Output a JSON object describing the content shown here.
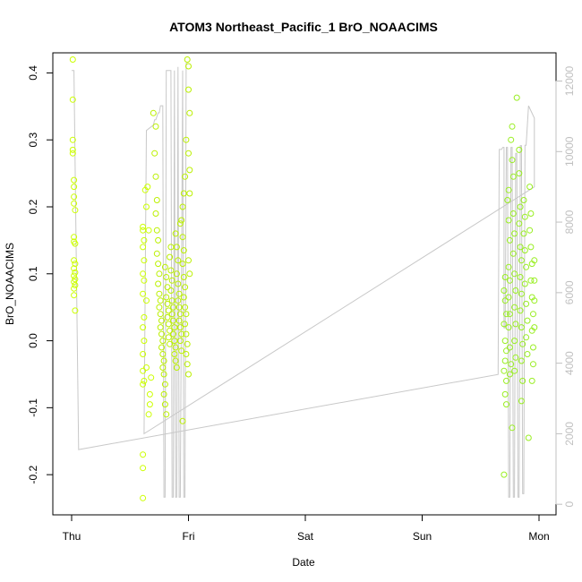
{
  "chart_data": {
    "type": "scatter",
    "title": "ATOM3 Northeast_Pacific_1 BrO_NOAACIMS",
    "xlabel": "Date",
    "ylabel": "BrO_NOAACIMS",
    "x_ticks": [
      "Thu",
      "Fri",
      "Sat",
      "Sun",
      "Mon"
    ],
    "x_range_days": [
      0,
      4
    ],
    "ylim": [
      -0.26,
      0.43
    ],
    "y_ticks": [
      -0.2,
      -0.1,
      0.0,
      0.1,
      0.2,
      0.3,
      0.4
    ],
    "y_tick_labels": [
      "-0.2",
      "-0.1",
      "0.0",
      "0.1",
      "0.2",
      "0.3",
      "0.4"
    ],
    "y2_range": [
      -300,
      12800
    ],
    "y2_ticks": [
      0,
      2000,
      4000,
      6000,
      8000,
      10000,
      12000
    ],
    "y2_tick_labels": [
      "0",
      "2000",
      "4000",
      "6000",
      "8000",
      "10000",
      "12000"
    ],
    "series": [
      {
        "point_color": "#ccff00",
        "points": [
          [
            0.01,
            0.42
          ],
          [
            0.01,
            0.36
          ],
          [
            0.01,
            0.3
          ],
          [
            0.01,
            0.285
          ],
          [
            0.01,
            0.28
          ],
          [
            0.02,
            0.24
          ],
          [
            0.02,
            0.23
          ],
          [
            0.02,
            0.215
          ],
          [
            0.02,
            0.205
          ],
          [
            0.03,
            0.195
          ],
          [
            0.02,
            0.155
          ],
          [
            0.02,
            0.148
          ],
          [
            0.03,
            0.145
          ],
          [
            0.02,
            0.12
          ],
          [
            0.03,
            0.115
          ],
          [
            0.02,
            0.108
          ],
          [
            0.03,
            0.102
          ],
          [
            0.02,
            0.097
          ],
          [
            0.03,
            0.092
          ],
          [
            0.02,
            0.088
          ],
          [
            0.03,
            0.083
          ],
          [
            0.02,
            0.078
          ],
          [
            0.02,
            0.068
          ],
          [
            0.03,
            0.045
          ],
          [
            0.61,
            0.17
          ],
          [
            0.61,
            0.165
          ],
          [
            0.62,
            0.15
          ],
          [
            0.61,
            0.14
          ],
          [
            0.62,
            0.12
          ],
          [
            0.61,
            0.1
          ],
          [
            0.62,
            0.09
          ],
          [
            0.61,
            0.07
          ],
          [
            0.62,
            0.035
          ],
          [
            0.61,
            0.02
          ],
          [
            0.62,
            0.0
          ],
          [
            0.61,
            -0.02
          ],
          [
            0.61,
            -0.045
          ],
          [
            0.62,
            -0.06
          ],
          [
            0.61,
            -0.065
          ],
          [
            0.61,
            -0.17
          ],
          [
            0.61,
            -0.19
          ],
          [
            0.61,
            -0.235
          ],
          [
            0.63,
            0.225
          ],
          [
            0.64,
            0.2
          ],
          [
            0.64,
            0.06
          ],
          [
            0.64,
            -0.04
          ],
          [
            0.65,
            0.23
          ],
          [
            0.66,
            0.165
          ],
          [
            0.66,
            -0.11
          ],
          [
            0.67,
            -0.08
          ],
          [
            0.67,
            -0.095
          ],
          [
            0.68,
            -0.055
          ]
        ]
      },
      {
        "point_color": "#99ee22",
        "points": [
          [
            3.71,
            0.095
          ],
          [
            3.7,
            0.075
          ],
          [
            3.71,
            0.06
          ],
          [
            3.72,
            0.04
          ],
          [
            3.7,
            0.025
          ],
          [
            3.71,
            0.0
          ],
          [
            3.72,
            -0.015
          ],
          [
            3.71,
            -0.03
          ],
          [
            3.7,
            -0.045
          ],
          [
            3.72,
            -0.06
          ],
          [
            3.71,
            -0.08
          ],
          [
            3.72,
            -0.095
          ],
          [
            3.7,
            -0.2
          ],
          [
            3.73,
            0.21
          ],
          [
            3.74,
            0.225
          ],
          [
            3.74,
            0.18
          ],
          [
            3.75,
            0.15
          ],
          [
            3.74,
            0.11
          ],
          [
            3.75,
            0.09
          ],
          [
            3.74,
            0.065
          ],
          [
            3.75,
            0.04
          ],
          [
            3.74,
            0.02
          ],
          [
            3.75,
            -0.01
          ],
          [
            3.76,
            -0.035
          ],
          [
            3.75,
            -0.05
          ],
          [
            3.76,
            0.3
          ],
          [
            3.77,
            0.32
          ],
          [
            3.77,
            0.27
          ],
          [
            3.78,
            0.245
          ],
          [
            3.78,
            0.19
          ],
          [
            3.79,
            0.16
          ],
          [
            3.78,
            0.13
          ],
          [
            3.79,
            0.1
          ],
          [
            3.8,
            0.075
          ],
          [
            3.79,
            0.05
          ],
          [
            3.8,
            0.025
          ],
          [
            3.79,
            0.0
          ],
          [
            3.8,
            -0.025
          ],
          [
            3.79,
            -0.045
          ],
          [
            3.77,
            -0.13
          ],
          [
            3.81,
            0.363
          ],
          [
            3.83,
            0.285
          ],
          [
            3.83,
            0.25
          ],
          [
            3.84,
            0.2
          ],
          [
            3.83,
            0.175
          ],
          [
            3.84,
            0.14
          ],
          [
            3.85,
            0.12
          ],
          [
            3.84,
            0.095
          ],
          [
            3.85,
            0.07
          ],
          [
            3.84,
            0.045
          ],
          [
            3.85,
            0.02
          ],
          [
            3.86,
            -0.005
          ],
          [
            3.85,
            -0.03
          ],
          [
            3.86,
            -0.06
          ],
          [
            3.85,
            -0.09
          ],
          [
            3.87,
            0.21
          ],
          [
            3.88,
            0.185
          ],
          [
            3.87,
            0.16
          ],
          [
            3.88,
            0.135
          ],
          [
            3.89,
            0.11
          ],
          [
            3.88,
            0.085
          ],
          [
            3.89,
            0.055
          ],
          [
            3.9,
            0.03
          ],
          [
            3.89,
            0.005
          ],
          [
            3.9,
            -0.02
          ],
          [
            3.91,
            -0.145
          ],
          [
            3.92,
            0.23
          ],
          [
            3.93,
            0.19
          ],
          [
            3.92,
            0.165
          ],
          [
            3.93,
            0.14
          ],
          [
            3.94,
            0.115
          ],
          [
            3.93,
            0.09
          ],
          [
            3.94,
            0.065
          ],
          [
            3.95,
            0.04
          ],
          [
            3.94,
            0.015
          ],
          [
            3.95,
            -0.01
          ],
          [
            3.95,
            -0.035
          ],
          [
            3.94,
            -0.06
          ],
          [
            3.96,
            0.12
          ],
          [
            3.96,
            0.09
          ],
          [
            3.96,
            0.06
          ],
          [
            3.96,
            0.02
          ]
        ]
      },
      {
        "point_color": "#bbf000",
        "points": [
          [
            0.7,
            0.34
          ],
          [
            0.72,
            0.32
          ],
          [
            0.71,
            0.28
          ],
          [
            0.72,
            0.245
          ],
          [
            0.73,
            0.21
          ],
          [
            0.72,
            0.19
          ],
          [
            0.73,
            0.165
          ],
          [
            0.74,
            0.15
          ],
          [
            0.73,
            0.13
          ],
          [
            0.74,
            0.115
          ],
          [
            0.75,
            0.1
          ],
          [
            0.74,
            0.085
          ],
          [
            0.75,
            0.07
          ],
          [
            0.76,
            0.06
          ],
          [
            0.75,
            0.05
          ],
          [
            0.76,
            0.04
          ],
          [
            0.77,
            0.03
          ],
          [
            0.76,
            0.02
          ],
          [
            0.77,
            0.01
          ],
          [
            0.78,
            0.0
          ],
          [
            0.77,
            -0.01
          ],
          [
            0.78,
            -0.02
          ],
          [
            0.79,
            -0.03
          ],
          [
            0.78,
            -0.04
          ],
          [
            0.79,
            -0.05
          ],
          [
            0.8,
            -0.065
          ],
          [
            0.79,
            -0.08
          ],
          [
            0.8,
            -0.095
          ],
          [
            0.81,
            -0.11
          ],
          [
            0.8,
            0.11
          ],
          [
            0.81,
            0.095
          ],
          [
            0.82,
            0.08
          ],
          [
            0.81,
            0.065
          ],
          [
            0.82,
            0.055
          ],
          [
            0.83,
            0.045
          ],
          [
            0.82,
            0.035
          ],
          [
            0.83,
            0.025
          ],
          [
            0.84,
            0.015
          ],
          [
            0.83,
            0.005
          ],
          [
            0.84,
            -0.005
          ],
          [
            0.85,
            0.14
          ],
          [
            0.84,
            0.125
          ],
          [
            0.85,
            0.105
          ],
          [
            0.86,
            0.09
          ],
          [
            0.85,
            0.075
          ],
          [
            0.86,
            0.06
          ],
          [
            0.87,
            0.05
          ],
          [
            0.86,
            0.04
          ],
          [
            0.87,
            0.03
          ],
          [
            0.88,
            0.02
          ],
          [
            0.87,
            0.01
          ],
          [
            0.88,
            0.0
          ],
          [
            0.89,
            -0.01
          ],
          [
            0.88,
            -0.02
          ],
          [
            0.89,
            -0.03
          ],
          [
            0.9,
            -0.04
          ],
          [
            0.89,
            0.16
          ],
          [
            0.9,
            0.14
          ],
          [
            0.91,
            0.12
          ],
          [
            0.9,
            0.1
          ],
          [
            0.91,
            0.085
          ],
          [
            0.92,
            0.07
          ],
          [
            0.91,
            0.06
          ],
          [
            0.92,
            0.05
          ],
          [
            0.93,
            0.04
          ],
          [
            0.92,
            0.03
          ],
          [
            0.93,
            0.02
          ],
          [
            0.94,
            0.01
          ],
          [
            0.93,
            0.0
          ],
          [
            0.94,
            -0.015
          ],
          [
            0.95,
            0.2
          ],
          [
            0.94,
            0.18
          ],
          [
            0.95,
            0.155
          ],
          [
            0.96,
            0.135
          ],
          [
            0.95,
            0.115
          ],
          [
            0.96,
            0.095
          ],
          [
            0.97,
            0.08
          ],
          [
            0.96,
            0.065
          ],
          [
            0.97,
            0.05
          ],
          [
            0.98,
            0.04
          ],
          [
            0.97,
            0.025
          ],
          [
            0.98,
            0.01
          ],
          [
            0.99,
            -0.005
          ],
          [
            0.98,
            -0.02
          ],
          [
            0.99,
            -0.035
          ],
          [
            1.0,
            -0.05
          ],
          [
            0.99,
            0.42
          ],
          [
            1.0,
            0.41
          ],
          [
            1.0,
            0.375
          ],
          [
            1.01,
            0.34
          ],
          [
            1.0,
            0.28
          ],
          [
            1.01,
            0.255
          ],
          [
            1.01,
            0.22
          ],
          [
            1.0,
            0.12
          ],
          [
            1.01,
            0.1
          ],
          [
            0.98,
            0.3
          ],
          [
            0.97,
            0.245
          ],
          [
            0.96,
            0.22
          ],
          [
            0.93,
            0.175
          ],
          [
            0.95,
            -0.12
          ]
        ]
      }
    ],
    "line_series": {
      "line_color": "#c8c8c8",
      "points": [
        [
          0.0,
          12300
        ],
        [
          0.02,
          12300
        ],
        [
          0.06,
          1550
        ],
        [
          3.65,
          3680
        ],
        [
          3.66,
          10060
        ],
        [
          3.68,
          10060
        ],
        [
          3.69,
          10120
        ],
        [
          3.7,
          10120
        ],
        [
          3.7,
          5000
        ],
        [
          3.71,
          5000
        ],
        [
          3.72,
          10120
        ],
        [
          3.73,
          10120
        ],
        [
          3.74,
          200
        ],
        [
          3.75,
          200
        ],
        [
          3.76,
          10120
        ],
        [
          3.77,
          10120
        ],
        [
          3.78,
          200
        ],
        [
          3.79,
          200
        ],
        [
          3.8,
          9950
        ],
        [
          3.81,
          9950
        ],
        [
          3.82,
          200
        ],
        [
          3.83,
          200
        ],
        [
          3.84,
          10170
        ],
        [
          3.85,
          10170
        ],
        [
          3.86,
          300
        ],
        [
          3.87,
          300
        ],
        [
          3.88,
          10180
        ],
        [
          3.89,
          10180
        ],
        [
          3.91,
          11300
        ],
        [
          3.96,
          10950
        ],
        [
          3.96,
          9000
        ],
        [
          0.62,
          2000
        ],
        [
          0.64,
          10600
        ],
        [
          0.68,
          10700
        ],
        [
          0.7,
          10750
        ],
        [
          0.71,
          10900
        ],
        [
          0.72,
          10900
        ],
        [
          0.74,
          11100
        ],
        [
          0.75,
          11100
        ],
        [
          0.76,
          11300
        ],
        [
          0.78,
          11300
        ],
        [
          0.79,
          200
        ],
        [
          0.8,
          200
        ],
        [
          0.81,
          12300
        ],
        [
          0.82,
          12300
        ],
        [
          0.85,
          12300
        ],
        [
          0.86,
          200
        ],
        [
          0.87,
          200
        ],
        [
          0.88,
          12300
        ],
        [
          0.89,
          200
        ],
        [
          0.9,
          200
        ],
        [
          0.91,
          12400
        ],
        [
          0.92,
          200
        ],
        [
          0.93,
          200
        ],
        [
          0.95,
          12300
        ],
        [
          0.96,
          200
        ],
        [
          0.97,
          200
        ],
        [
          0.98,
          12500
        ],
        [
          0.99,
          12500
        ]
      ]
    }
  }
}
